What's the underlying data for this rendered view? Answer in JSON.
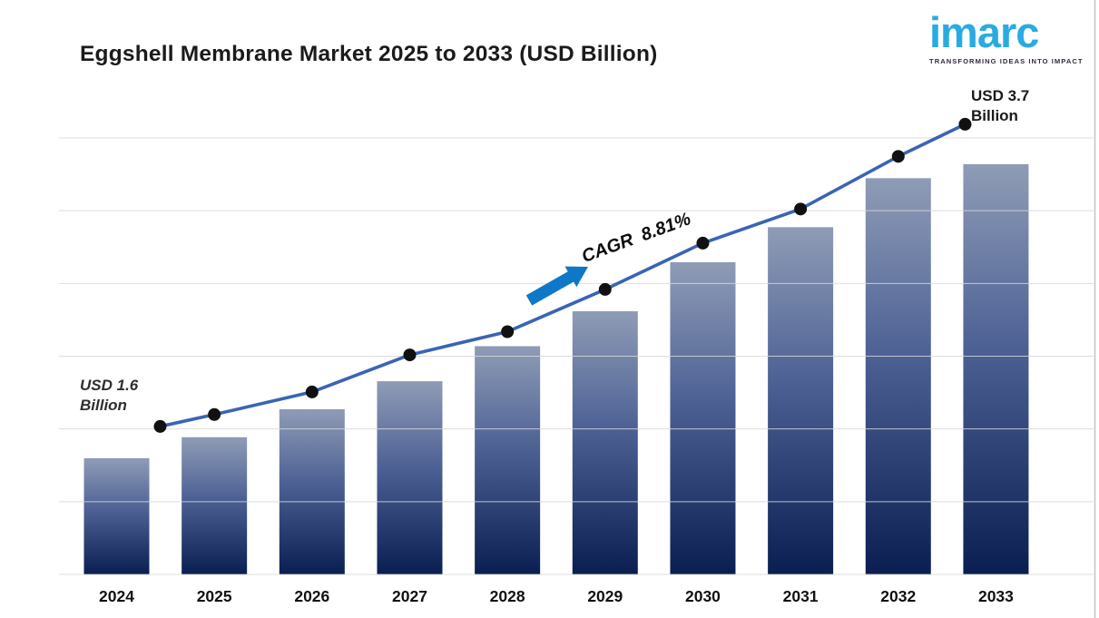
{
  "header": {
    "title": "Eggshell Membrane Market 2025 to 2033 (USD Billion)"
  },
  "logo": {
    "brand": "imarc",
    "tagline": "TRANSFORMING IDEAS INTO IMPACT"
  },
  "chart_data": {
    "type": "bar",
    "overlay": "line",
    "title": "Eggshell Membrane Market 2025 to 2033 (USD Billion)",
    "unit": "USD Billion",
    "categories": [
      "2024",
      "2025",
      "2026",
      "2027",
      "2028",
      "2029",
      "2030",
      "2031",
      "2032",
      "2033"
    ],
    "values": [
      1.6,
      1.75,
      1.95,
      2.15,
      2.4,
      2.65,
      3.0,
      3.25,
      3.6,
      3.7
    ],
    "start_value": 1.6,
    "end_value": 3.7,
    "cagr_percent": 8.81,
    "annotations": {
      "start_label": "USD 1.6 Billion",
      "end_label": "USD 3.7 Billion",
      "cagr_label": "CAGR 8.81%"
    },
    "grid": true,
    "y_tick_labels_visible": false,
    "legend": false,
    "colors": {
      "bar_gradient_top": "#8F9CB6",
      "bar_gradient_mid": "#4C6094",
      "bar_gradient_bottom": "#0A1E52",
      "trend_line": "#3A64B5",
      "marker": "#111111",
      "arrow": "#0E78C8",
      "gridline": "#D8D8D8",
      "logo_blue": "#29ABE2",
      "axis_label": "#111111"
    }
  }
}
